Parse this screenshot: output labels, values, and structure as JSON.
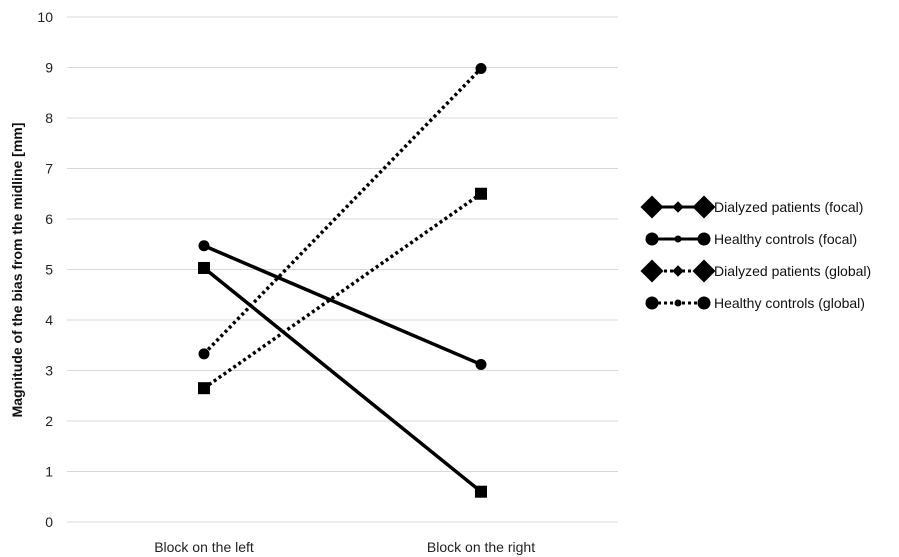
{
  "chart_data": {
    "type": "line",
    "title": "",
    "xlabel": "",
    "ylabel": "Magnitude of the bias from the midline [mm]",
    "categories": [
      "Block on the left",
      "Block on the right"
    ],
    "ylim": [
      0,
      10
    ],
    "yticks": [
      0,
      1,
      2,
      3,
      4,
      5,
      6,
      7,
      8,
      9,
      10
    ],
    "grid": true,
    "legend_position": "right",
    "series": [
      {
        "name": "Dialyzed patients (focal)",
        "values": [
          5.03,
          0.6
        ],
        "line": "solid",
        "marker": "square",
        "legend_marker": "diamond",
        "color": "#000000"
      },
      {
        "name": "Healthy controls (focal)",
        "values": [
          5.47,
          3.12
        ],
        "line": "solid",
        "marker": "circle",
        "legend_marker": "circle",
        "color": "#000000"
      },
      {
        "name": "Dialyzed patients (global)",
        "values": [
          2.65,
          6.5
        ],
        "line": "dotted",
        "marker": "square",
        "legend_marker": "diamond",
        "color": "#000000"
      },
      {
        "name": "Healthy controls (global)",
        "values": [
          3.33,
          8.98
        ],
        "line": "dotted",
        "marker": "circle",
        "legend_marker": "circle",
        "color": "#000000"
      }
    ]
  }
}
